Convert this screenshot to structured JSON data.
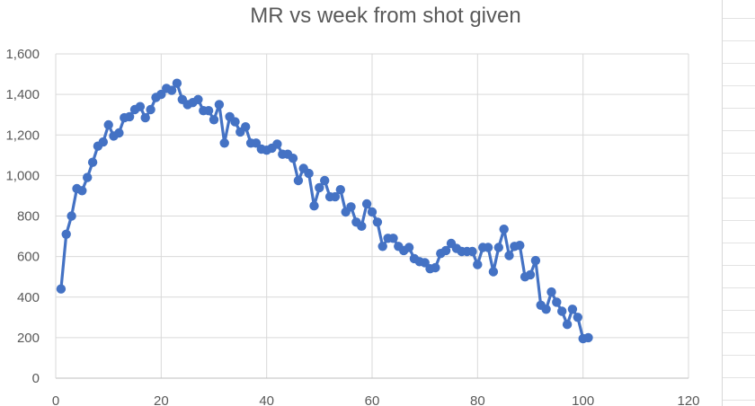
{
  "chart_data": {
    "type": "line",
    "title": "MR vs week from shot given",
    "xlabel": "",
    "ylabel": "",
    "xlim": [
      0,
      120
    ],
    "ylim": [
      0,
      1600
    ],
    "x_ticks": [
      0,
      20,
      40,
      60,
      80,
      100,
      120
    ],
    "y_ticks": [
      0,
      200,
      400,
      600,
      800,
      1000,
      1200,
      1400,
      1600
    ],
    "x_tick_labels": [
      "0",
      "20",
      "40",
      "60",
      "80",
      "100",
      "120"
    ],
    "y_tick_labels": [
      "0",
      "200",
      "400",
      "600",
      "800",
      "1,000",
      "1,200",
      "1,400",
      "1,600"
    ],
    "grid": true,
    "legend": "none",
    "colors": {
      "series": "#4472c4",
      "grid": "#d9d9d9",
      "text": "#595959"
    },
    "series": [
      {
        "marker": "circle",
        "points": [
          [
            1,
            440
          ],
          [
            2,
            710
          ],
          [
            3,
            800
          ],
          [
            4,
            935
          ],
          [
            5,
            925
          ],
          [
            6,
            990
          ],
          [
            7,
            1065
          ],
          [
            8,
            1145
          ],
          [
            9,
            1165
          ],
          [
            10,
            1250
          ],
          [
            11,
            1195
          ],
          [
            12,
            1210
          ],
          [
            13,
            1285
          ],
          [
            14,
            1290
          ],
          [
            15,
            1325
          ],
          [
            16,
            1340
          ],
          [
            17,
            1285
          ],
          [
            18,
            1325
          ],
          [
            19,
            1385
          ],
          [
            20,
            1400
          ],
          [
            21,
            1430
          ],
          [
            22,
            1420
          ],
          [
            23,
            1455
          ],
          [
            24,
            1375
          ],
          [
            25,
            1350
          ],
          [
            26,
            1360
          ],
          [
            27,
            1375
          ],
          [
            28,
            1320
          ],
          [
            29,
            1320
          ],
          [
            30,
            1275
          ],
          [
            31,
            1350
          ],
          [
            32,
            1160
          ],
          [
            33,
            1290
          ],
          [
            34,
            1265
          ],
          [
            35,
            1215
          ],
          [
            36,
            1240
          ],
          [
            37,
            1160
          ],
          [
            38,
            1160
          ],
          [
            39,
            1130
          ],
          [
            40,
            1125
          ],
          [
            41,
            1135
          ],
          [
            42,
            1155
          ],
          [
            43,
            1105
          ],
          [
            44,
            1105
          ],
          [
            45,
            1085
          ],
          [
            46,
            975
          ],
          [
            47,
            1035
          ],
          [
            48,
            1010
          ],
          [
            49,
            850
          ],
          [
            50,
            940
          ],
          [
            51,
            975
          ],
          [
            52,
            895
          ],
          [
            53,
            895
          ],
          [
            54,
            930
          ],
          [
            55,
            820
          ],
          [
            56,
            845
          ],
          [
            57,
            770
          ],
          [
            58,
            750
          ],
          [
            59,
            860
          ],
          [
            60,
            820
          ],
          [
            61,
            770
          ],
          [
            62,
            650
          ],
          [
            63,
            690
          ],
          [
            64,
            690
          ],
          [
            65,
            650
          ],
          [
            66,
            630
          ],
          [
            67,
            645
          ],
          [
            68,
            590
          ],
          [
            69,
            575
          ],
          [
            70,
            570
          ],
          [
            71,
            540
          ],
          [
            72,
            545
          ],
          [
            73,
            615
          ],
          [
            74,
            630
          ],
          [
            75,
            665
          ],
          [
            76,
            640
          ],
          [
            77,
            625
          ],
          [
            78,
            625
          ],
          [
            79,
            625
          ],
          [
            80,
            560
          ],
          [
            81,
            645
          ],
          [
            82,
            645
          ],
          [
            83,
            525
          ],
          [
            84,
            645
          ],
          [
            85,
            735
          ],
          [
            86,
            605
          ],
          [
            87,
            650
          ],
          [
            88,
            655
          ],
          [
            89,
            500
          ],
          [
            90,
            510
          ],
          [
            91,
            580
          ],
          [
            92,
            360
          ],
          [
            93,
            340
          ],
          [
            94,
            425
          ],
          [
            95,
            375
          ],
          [
            96,
            330
          ],
          [
            97,
            265
          ],
          [
            98,
            340
          ],
          [
            99,
            300
          ],
          [
            100,
            195
          ],
          [
            101,
            200
          ]
        ]
      }
    ]
  }
}
